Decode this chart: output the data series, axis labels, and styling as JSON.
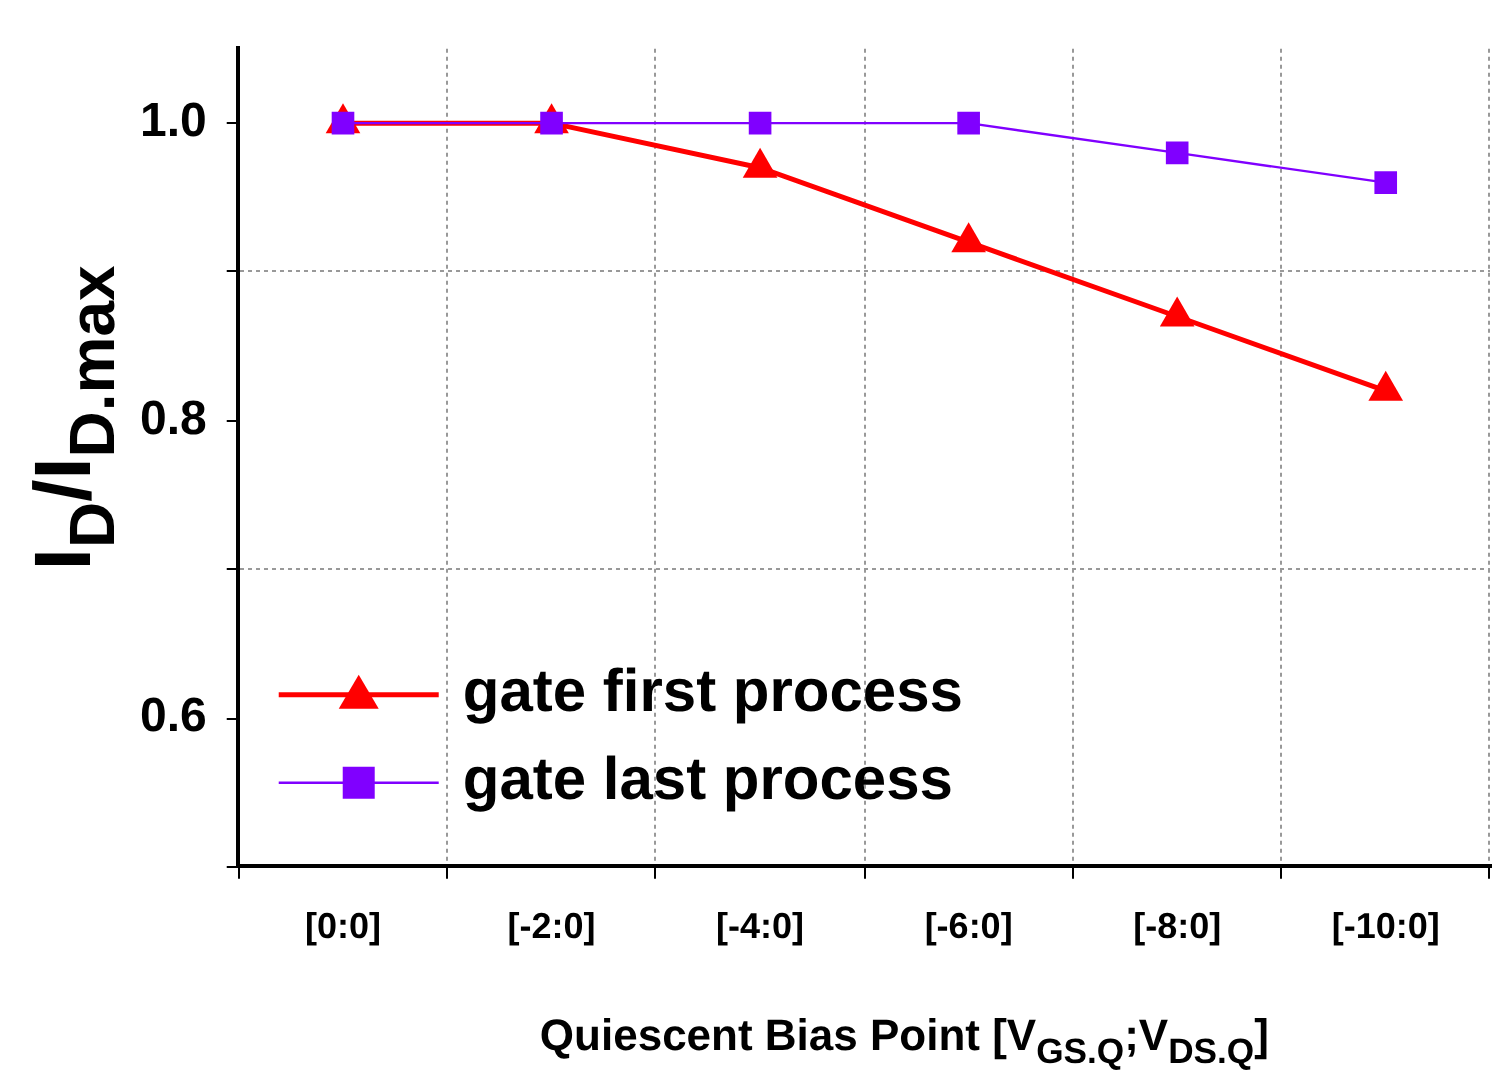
{
  "chart_data": {
    "type": "line",
    "xlabel": "Quiescent Bias Point [V$_{GS.Q}$;V$_{DS.Q}$]",
    "ylabel": "I$_{D}$/I$_{D.max}$",
    "categories": [
      "[0:0]",
      "[-2:0]",
      "[-4:0]",
      "[-6:0]",
      "[-8:0]",
      "[-10:0]"
    ],
    "series": [
      {
        "name": "gate first process",
        "color": "#ff0000",
        "marker": "triangle",
        "values": [
          1.0,
          1.0,
          0.97,
          0.92,
          0.87,
          0.82
        ]
      },
      {
        "name": "gate last process",
        "color": "#8000ff",
        "marker": "square",
        "values": [
          1.0,
          1.0,
          1.0,
          1.0,
          0.98,
          0.96
        ]
      }
    ],
    "ylim": [
      0.5,
      1.05
    ],
    "yticks": [
      {
        "value": 0.5,
        "label": null
      },
      {
        "value": 0.6,
        "label": "0.6"
      },
      {
        "value": 0.7,
        "label": null
      },
      {
        "value": 0.8,
        "label": "0.8"
      },
      {
        "value": 0.9,
        "label": null
      },
      {
        "value": 1.0,
        "label": "1.0"
      }
    ],
    "grid": true,
    "legend": "bottom left"
  }
}
